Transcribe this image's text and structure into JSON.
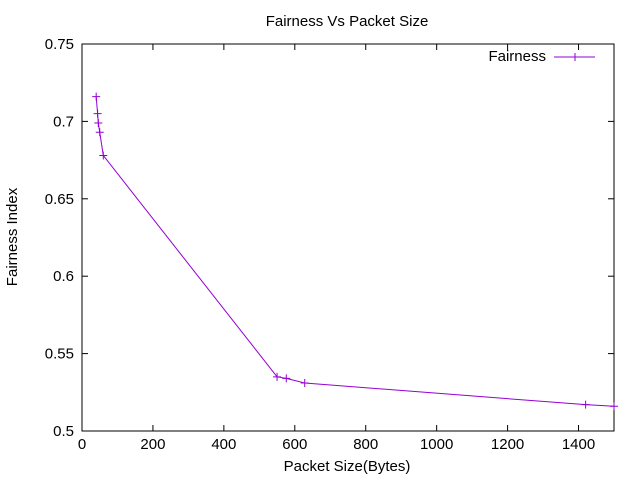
{
  "chart_data": {
    "type": "line",
    "title": "Fairness Vs Packet Size",
    "xlabel": "Packet Size(Bytes)",
    "ylabel": "Fairness Index",
    "xlim": [
      0,
      1500
    ],
    "ylim": [
      0.5,
      0.75
    ],
    "x_ticks": [
      0,
      200,
      400,
      600,
      800,
      1000,
      1200,
      1400
    ],
    "y_ticks": [
      0.5,
      0.55,
      0.6,
      0.65,
      0.7,
      0.75
    ],
    "x_tick_labels": [
      "0",
      "200",
      "400",
      "600",
      "800",
      "1000",
      "1200",
      "1400"
    ],
    "y_tick_labels": [
      "0.5",
      "0.55",
      "0.6",
      "0.65",
      "0.7",
      "0.75"
    ],
    "grid": false,
    "legend_position": "top-right",
    "series": [
      {
        "name": "Fairness",
        "color": "#9400d3",
        "marker": "plus",
        "x": [
          40,
          44,
          46,
          50,
          60,
          550,
          576,
          628,
          1420,
          1500
        ],
        "y": [
          0.716,
          0.705,
          0.699,
          0.693,
          0.678,
          0.535,
          0.534,
          0.531,
          0.517,
          0.516
        ]
      }
    ]
  }
}
